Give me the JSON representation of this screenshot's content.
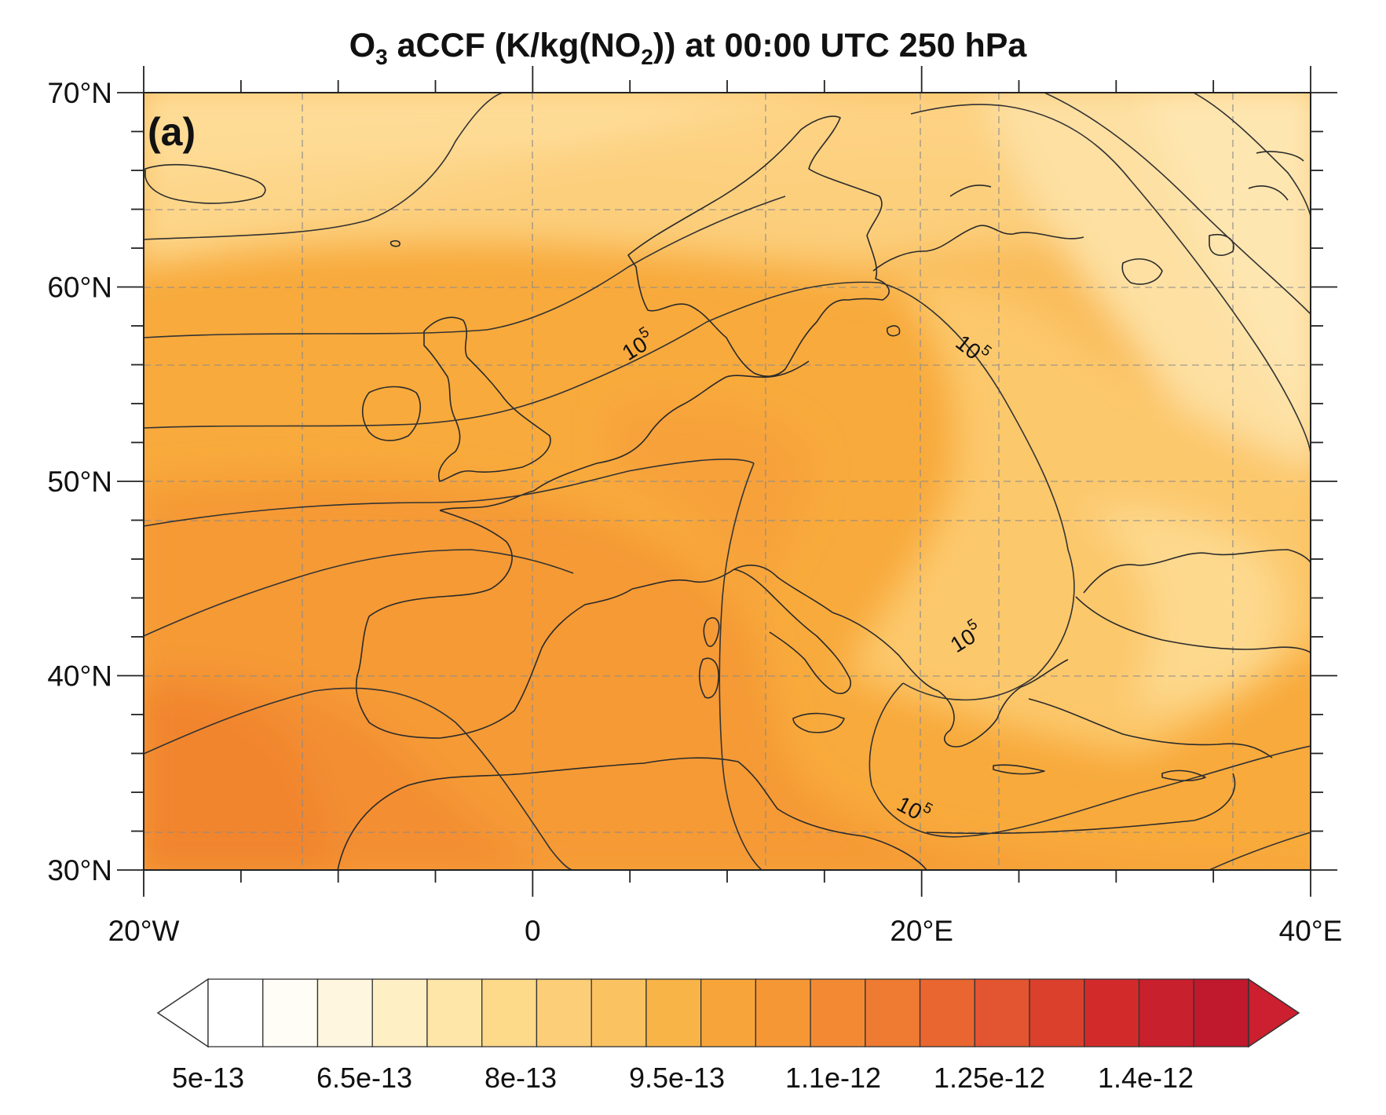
{
  "title": {
    "prefix": "O",
    "sub1": "3",
    "middle": " aCCF (K/kg(NO",
    "sub2": "2",
    "suffix": ")) at 00:00 UTC 250 hPa"
  },
  "panel_label": "(a)",
  "map": {
    "lon_range": [
      -20,
      40
    ],
    "lat_range": [
      30,
      70
    ],
    "lat_ticks": [
      {
        "value": 70,
        "label": "70°N"
      },
      {
        "value": 60,
        "label": "60°N"
      },
      {
        "value": 50,
        "label": "50°N"
      },
      {
        "value": 40,
        "label": "40°N"
      },
      {
        "value": 30,
        "label": "30°N"
      }
    ],
    "lon_ticks": [
      {
        "value": -20,
        "label": "20°W"
      },
      {
        "value": 0,
        "label": "0"
      },
      {
        "value": 20,
        "label": "20°E"
      },
      {
        "value": 40,
        "label": "40°E"
      }
    ],
    "contour_labels": [
      {
        "text": "10",
        "sup": "5"
      },
      {
        "text": "10",
        "sup": "5"
      },
      {
        "text": "10",
        "sup": "5"
      },
      {
        "text": "10",
        "sup": "5"
      }
    ]
  },
  "colorbar": {
    "labels": [
      "5e-13",
      "6.5e-13",
      "8e-13",
      "9.5e-13",
      "1.1e-12",
      "1.25e-12",
      "1.4e-12"
    ],
    "colors": [
      "#ffffff",
      "#fffdf5",
      "#fff6e0",
      "#ffefc4",
      "#fee6a8",
      "#fdd98a",
      "#fcce78",
      "#fbc261",
      "#f9b448",
      "#f7a53a",
      "#f59735",
      "#f38a33",
      "#ef7a31",
      "#ea6630",
      "#e35430",
      "#db402d",
      "#d22a2a",
      "#c8202d",
      "#c0182c"
    ],
    "left_arrow_color": "#ffffff",
    "right_arrow_color": "#cc1f2f"
  }
}
